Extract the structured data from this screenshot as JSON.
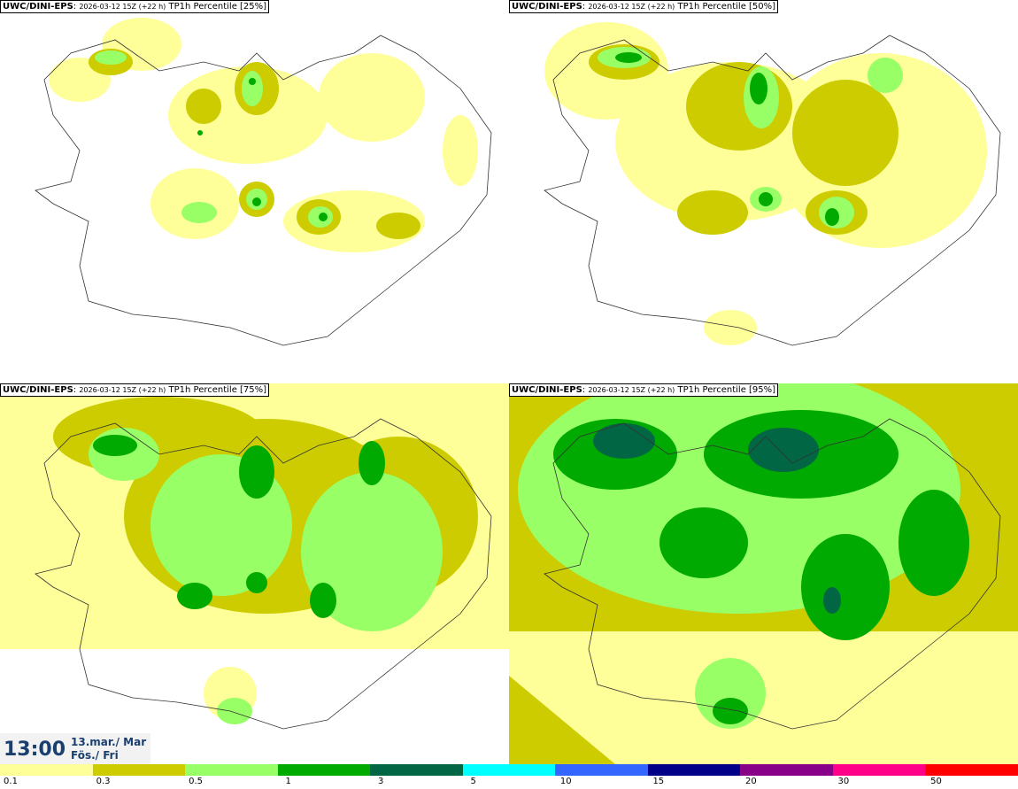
{
  "panels": [
    {
      "model": "UWC/DINI-EPS",
      "run": "2026-03-12 15Z (+22 h)",
      "field": "TP1h Percentile [25%]"
    },
    {
      "model": "UWC/DINI-EPS",
      "run": "2026-03-12 15Z (+22 h)",
      "field": "TP1h Percentile [50%]"
    },
    {
      "model": "UWC/DINI-EPS",
      "run": "2026-03-12 15Z (+22 h)",
      "field": "TP1h Percentile [75%]"
    },
    {
      "model": "UWC/DINI-EPS",
      "run": "2026-03-12 15Z (+22 h)",
      "field": "TP1h Percentile [95%]"
    }
  ],
  "valid_time": {
    "time": "13:00",
    "date_line1": "13.mar./ Mar",
    "date_line2": "Fös./ Fri"
  },
  "colorbar": {
    "colors": [
      "#ffff99",
      "#cccc00",
      "#99ff66",
      "#00aa00",
      "#006644",
      "#00ffff",
      "#3366ff",
      "#000088",
      "#880088",
      "#ff0088",
      "#ff0000"
    ],
    "labels": [
      "0.1",
      "0.3",
      "0.5",
      "1",
      "3",
      "5",
      "10",
      "15",
      "20",
      "30",
      "50"
    ]
  },
  "legend_colors": {
    "light_yellow": "#ffff99",
    "olive": "#cccc00",
    "light_green": "#99ff66",
    "green": "#00aa00",
    "dark_green": "#006644",
    "darker_green": "#004d33"
  }
}
